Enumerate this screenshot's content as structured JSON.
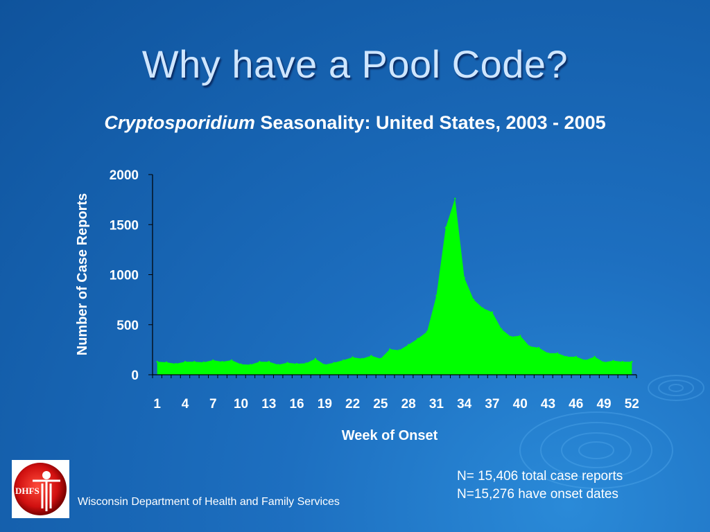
{
  "slide": {
    "title": "Why have a Pool Code?",
    "subtitle_italic": "Cryptosporidium",
    "subtitle_rest": " Seasonality: United States, 2003 - 2005",
    "logo_text": "DHFS",
    "organization": "Wisconsin Department of Health and Family Services",
    "note_1": "N=  15,406 total case reports",
    "note_2": "N=15,276 have onset dates"
  },
  "chart_data": {
    "type": "area",
    "title": "",
    "xlabel": "Week of Onset",
    "ylabel": "Number of Case Reports",
    "x": [
      1,
      2,
      3,
      4,
      5,
      6,
      7,
      8,
      9,
      10,
      11,
      12,
      13,
      14,
      15,
      16,
      17,
      18,
      19,
      20,
      21,
      22,
      23,
      24,
      25,
      26,
      27,
      28,
      29,
      30,
      31,
      32,
      33,
      34,
      35,
      36,
      37,
      38,
      39,
      40,
      41,
      42,
      43,
      44,
      45,
      46,
      47,
      48,
      49,
      50,
      51,
      52
    ],
    "values": [
      130,
      125,
      110,
      130,
      130,
      125,
      145,
      130,
      145,
      105,
      100,
      130,
      130,
      100,
      120,
      110,
      115,
      160,
      100,
      120,
      145,
      175,
      160,
      190,
      160,
      255,
      245,
      300,
      360,
      430,
      790,
      1470,
      1760,
      970,
      750,
      665,
      625,
      455,
      380,
      390,
      285,
      270,
      215,
      215,
      180,
      180,
      145,
      180,
      125,
      140,
      130,
      130
    ],
    "xticks": [
      "1",
      "4",
      "7",
      "10",
      "13",
      "16",
      "19",
      "22",
      "25",
      "28",
      "31",
      "34",
      "37",
      "40",
      "43",
      "46",
      "49",
      "52"
    ],
    "yticks": [
      "0",
      "500",
      "1000",
      "1500",
      "2000"
    ],
    "ylim": [
      0,
      2000
    ],
    "grid": false,
    "colors": {
      "fill": "#00ff00",
      "axis": "#000000",
      "text": "#ffffff"
    }
  }
}
